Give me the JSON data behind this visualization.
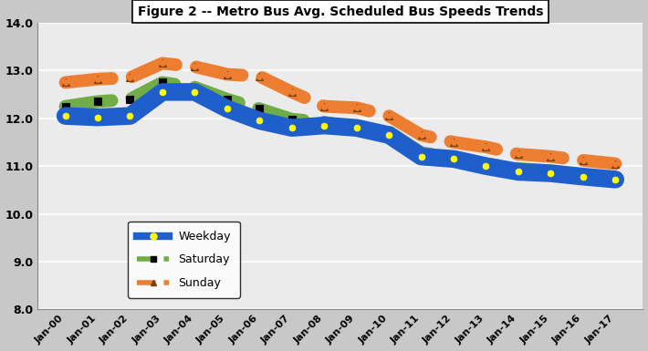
{
  "title": "Figure 2 -- Metro Bus Avg. Scheduled Bus Speeds Trends",
  "xlabels": [
    "Jan-00",
    "Jan-01",
    "Jan-02",
    "Jan-03",
    "Jan-04",
    "Jan-05",
    "Jan-06",
    "Jan-07",
    "Jan-08",
    "Jan-09",
    "Jan-10",
    "Jan-11",
    "Jan-12",
    "Jan-13",
    "Jan-14",
    "Jan-15",
    "Jan-16",
    "Jan-17"
  ],
  "weekday": [
    12.05,
    12.02,
    12.05,
    12.55,
    12.55,
    12.2,
    11.95,
    11.8,
    11.85,
    11.8,
    11.65,
    11.2,
    11.15,
    11.0,
    10.88,
    10.85,
    10.78,
    10.72
  ],
  "saturday": [
    12.25,
    12.35,
    12.4,
    12.75,
    12.65,
    12.4,
    12.2,
    11.98,
    11.92,
    11.8,
    11.72,
    11.28,
    11.18,
    11.05,
    10.95,
    10.9,
    10.82,
    10.73
  ],
  "sunday": [
    12.75,
    12.82,
    12.85,
    13.15,
    13.08,
    12.92,
    12.88,
    12.55,
    12.25,
    12.22,
    12.05,
    11.65,
    11.5,
    11.4,
    11.25,
    11.2,
    11.12,
    11.05
  ],
  "weekday_color": "#1F5FCC",
  "saturday_color": "#70AD47",
  "sunday_color": "#ED7D31",
  "ylim": [
    8.0,
    14.0
  ],
  "yticks": [
    8.0,
    9.0,
    10.0,
    11.0,
    12.0,
    13.0,
    14.0
  ],
  "plot_bgcolor": "#EBEBEB",
  "fig_bgcolor": "#C8C8C8"
}
